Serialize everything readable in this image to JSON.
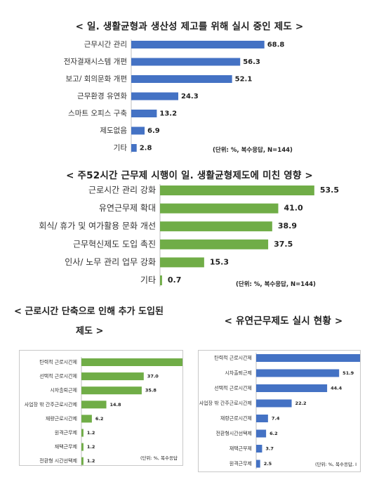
{
  "chart_data": [
    {
      "type": "bar",
      "orientation": "horizontal",
      "title": "< 일. 생활균형과 생산성 제고를 위해 실시 중인 제도 >",
      "categories": [
        "근무시간 관리",
        "전자결재시스템 개편",
        "보고/ 회의문화 개편",
        "근무환경 유연화",
        "스마트 오피스 구축",
        "제도없음",
        "기타"
      ],
      "values": [
        68.8,
        56.3,
        52.1,
        24.3,
        13.2,
        6.9,
        2.8
      ],
      "value_labels": [
        "68.8",
        "56.3",
        "52.1",
        "24.3",
        "13.2",
        "6.9",
        "2.8"
      ],
      "xlim": [
        0,
        70
      ],
      "color": "#4472c4",
      "note": "(단위: %, 복수응답, N=144)"
    },
    {
      "type": "bar",
      "orientation": "horizontal",
      "title": "< 주52시간 근무제 시행이 일. 생활균형제도에 미친 영향 >",
      "categories": [
        "근로시간 관리 강화",
        "유연근무제 확대",
        "회식/ 휴가 및 여가활용 문화 개선",
        "근무혁신제도 도입 촉진",
        "인사/ 노무 관리 업무 강화",
        "기타"
      ],
      "values": [
        53.5,
        41.0,
        38.9,
        37.5,
        15.3,
        0.7
      ],
      "value_labels": [
        "53.5",
        "41.0",
        "38.9",
        "37.5",
        "15.3",
        "0.7"
      ],
      "xlim": [
        0,
        55
      ],
      "color": "#70ad47",
      "note": "(단위: %, 복수응답, N=144)"
    },
    {
      "type": "bar",
      "orientation": "horizontal",
      "title_lines": [
        "< 근로시간 단축으로 인해 추가 도입된",
        "제도 >"
      ],
      "categories": [
        "탄력적 근로시간제",
        "선택적 근로시간제",
        "시차출퇴근제",
        "사업장 밖 간주근로시간제",
        "재량근로시간제",
        "원격근무제",
        "재택근무제",
        "전환형 시간선택제"
      ],
      "values": [
        60,
        37.0,
        35.8,
        14.8,
        6.2,
        1.2,
        1.2,
        1.2
      ],
      "value_labels": [
        "",
        "37.0",
        "35.8",
        "14.8",
        "6.2",
        "1.2",
        "1.2",
        "1.2"
      ],
      "xlim": [
        0,
        60
      ],
      "color": "#70ad47",
      "note": "(단위: %, 복수응답"
    },
    {
      "type": "bar",
      "orientation": "horizontal",
      "title": "< 유연근무제도 실시 현황 >",
      "categories": [
        "탄력적 근로시간제",
        "시차출퇴근제",
        "선택적 근로시간제",
        "사업장 밖 간주근로시간제",
        "재량근로시간제",
        "전환형시간선택제",
        "재택근무제",
        "원격근무제"
      ],
      "values": [
        65,
        51.9,
        44.4,
        22.2,
        7.4,
        6.2,
        3.7,
        2.5
      ],
      "value_labels": [
        "",
        "51.9",
        "44.4",
        "22.2",
        "7.4",
        "6.2",
        "3.7",
        "2.5"
      ],
      "xlim": [
        0,
        65
      ],
      "color": "#4472c4",
      "note": "(단위: %, 복수응답, I"
    }
  ]
}
